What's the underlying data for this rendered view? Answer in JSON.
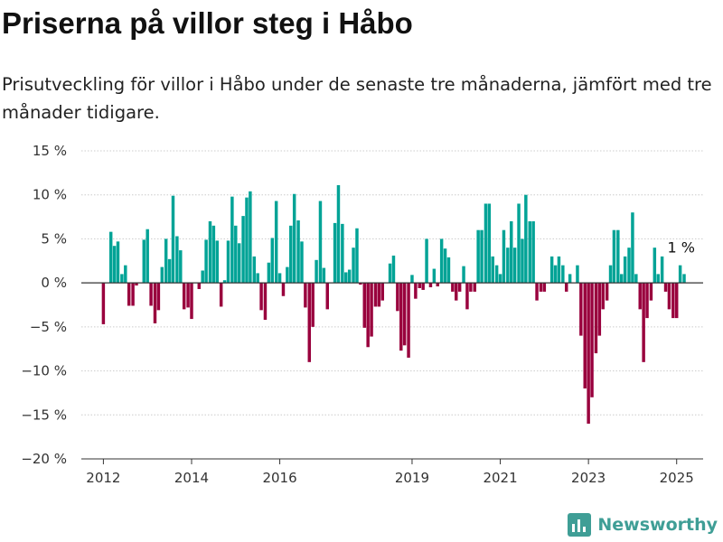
{
  "header": {
    "title": "Priserna på villor steg i Håbo",
    "subtitle": "Prisutveckling för villor i Håbo under de senaste tre månaderna, jämfört med tre månader tidigare."
  },
  "logo": {
    "text": "Newsworthy",
    "icon": "bar-chart-icon"
  },
  "colors": {
    "positive": "#00a396",
    "negative": "#99003d",
    "grid": "#cccccc",
    "zero_line": "#333333",
    "brand": "#3f9e96"
  },
  "chart_data": {
    "type": "bar",
    "title": "Priserna på villor steg i Håbo",
    "subtitle": "Prisutveckling för villor i Håbo under de senaste tre månaderna, jämfört med tre månader tidigare.",
    "xlabel": "",
    "ylabel": "",
    "ylim": [
      -20,
      15
    ],
    "xlim": [
      2011.5,
      2025.6
    ],
    "y_ticks": [
      15,
      10,
      5,
      0,
      -5,
      -10,
      -15,
      -20
    ],
    "y_tick_labels": [
      "15 %",
      "10 %",
      "5 %",
      "0 %",
      "−5 %",
      "−10 %",
      "−15 %",
      "−20 %"
    ],
    "x_ticks": [
      2012,
      2014,
      2016,
      2019,
      2021,
      2023,
      2025
    ],
    "x_tick_labels": [
      "2012",
      "2014",
      "2016",
      "2019",
      "2021",
      "2023",
      "2025"
    ],
    "grid": "horizontal",
    "legend": "none",
    "annotation": {
      "text": "1 %",
      "x": 2025.0,
      "y": 1
    },
    "series": [
      {
        "values": [
          [
            2012.0,
            -4.7
          ],
          [
            2012.17,
            5.8
          ],
          [
            2012.25,
            4.2
          ],
          [
            2012.33,
            4.7
          ],
          [
            2012.42,
            1.0
          ],
          [
            2012.5,
            2.0
          ],
          [
            2012.58,
            -2.6
          ],
          [
            2012.67,
            -2.6
          ],
          [
            2012.75,
            -0.3
          ],
          [
            2012.92,
            4.9
          ],
          [
            2013.0,
            6.1
          ],
          [
            2013.08,
            -2.6
          ],
          [
            2013.17,
            -4.6
          ],
          [
            2013.25,
            -3.1
          ],
          [
            2013.33,
            1.8
          ],
          [
            2013.42,
            5.0
          ],
          [
            2013.5,
            2.7
          ],
          [
            2013.58,
            9.9
          ],
          [
            2013.67,
            5.3
          ],
          [
            2013.75,
            3.7
          ],
          [
            2013.83,
            -3.0
          ],
          [
            2013.92,
            -2.8
          ],
          [
            2014.0,
            -4.1
          ],
          [
            2014.17,
            -0.7
          ],
          [
            2014.25,
            1.4
          ],
          [
            2014.33,
            4.9
          ],
          [
            2014.42,
            7.0
          ],
          [
            2014.5,
            6.5
          ],
          [
            2014.58,
            4.8
          ],
          [
            2014.67,
            -2.7
          ],
          [
            2014.75,
            0.3
          ],
          [
            2014.83,
            4.8
          ],
          [
            2014.92,
            9.8
          ],
          [
            2015.0,
            6.5
          ],
          [
            2015.08,
            4.5
          ],
          [
            2015.17,
            7.6
          ],
          [
            2015.25,
            9.7
          ],
          [
            2015.33,
            10.4
          ],
          [
            2015.42,
            3.0
          ],
          [
            2015.5,
            1.1
          ],
          [
            2015.58,
            -3.1
          ],
          [
            2015.67,
            -4.2
          ],
          [
            2015.75,
            2.3
          ],
          [
            2015.83,
            5.1
          ],
          [
            2015.92,
            9.3
          ],
          [
            2016.0,
            1.1
          ],
          [
            2016.08,
            -1.5
          ],
          [
            2016.17,
            1.8
          ],
          [
            2016.25,
            6.5
          ],
          [
            2016.33,
            10.1
          ],
          [
            2016.42,
            7.1
          ],
          [
            2016.5,
            4.7
          ],
          [
            2016.58,
            -2.8
          ],
          [
            2016.67,
            -9.0
          ],
          [
            2016.75,
            -5.0
          ],
          [
            2016.83,
            2.6
          ],
          [
            2016.92,
            9.3
          ],
          [
            2017.0,
            1.7
          ],
          [
            2017.08,
            -3.0
          ],
          [
            2017.25,
            6.8
          ],
          [
            2017.33,
            11.1
          ],
          [
            2017.42,
            6.7
          ],
          [
            2017.5,
            1.2
          ],
          [
            2017.58,
            1.5
          ],
          [
            2017.67,
            4.0
          ],
          [
            2017.75,
            6.2
          ],
          [
            2017.83,
            -0.2
          ],
          [
            2017.92,
            -5.1
          ],
          [
            2018.0,
            -7.3
          ],
          [
            2018.08,
            -6.1
          ],
          [
            2018.17,
            -2.7
          ],
          [
            2018.25,
            -2.7
          ],
          [
            2018.33,
            -2.0
          ],
          [
            2018.5,
            2.2
          ],
          [
            2018.58,
            3.1
          ],
          [
            2018.67,
            -3.2
          ],
          [
            2018.75,
            -7.7
          ],
          [
            2018.83,
            -7.1
          ],
          [
            2018.92,
            -8.5
          ],
          [
            2019.0,
            0.9
          ],
          [
            2019.08,
            -1.8
          ],
          [
            2019.17,
            -0.6
          ],
          [
            2019.25,
            -0.8
          ],
          [
            2019.33,
            5.0
          ],
          [
            2019.42,
            -0.5
          ],
          [
            2019.5,
            1.6
          ],
          [
            2019.58,
            -0.4
          ],
          [
            2019.67,
            5.0
          ],
          [
            2019.75,
            3.9
          ],
          [
            2019.83,
            2.9
          ],
          [
            2019.92,
            -1.0
          ],
          [
            2020.0,
            -2.0
          ],
          [
            2020.08,
            -1.0
          ],
          [
            2020.17,
            1.9
          ],
          [
            2020.25,
            -3.0
          ],
          [
            2020.33,
            -1.0
          ],
          [
            2020.42,
            -1.0
          ],
          [
            2020.5,
            6.0
          ],
          [
            2020.58,
            6.0
          ],
          [
            2020.67,
            9.0
          ],
          [
            2020.75,
            9.0
          ],
          [
            2020.83,
            3.0
          ],
          [
            2020.92,
            2.0
          ],
          [
            2021.0,
            1.0
          ],
          [
            2021.08,
            6.0
          ],
          [
            2021.17,
            4.0
          ],
          [
            2021.25,
            7.0
          ],
          [
            2021.33,
            4.0
          ],
          [
            2021.42,
            9.0
          ],
          [
            2021.5,
            5.0
          ],
          [
            2021.58,
            10.0
          ],
          [
            2021.67,
            7.0
          ],
          [
            2021.75,
            7.0
          ],
          [
            2021.83,
            -2.0
          ],
          [
            2021.92,
            -1.0
          ],
          [
            2022.0,
            -1.0
          ],
          [
            2022.17,
            3.0
          ],
          [
            2022.25,
            2.0
          ],
          [
            2022.33,
            3.0
          ],
          [
            2022.42,
            2.0
          ],
          [
            2022.5,
            -1.0
          ],
          [
            2022.58,
            1.0
          ],
          [
            2022.75,
            2.0
          ],
          [
            2022.83,
            -6.0
          ],
          [
            2022.92,
            -12.0
          ],
          [
            2023.0,
            -16.0
          ],
          [
            2023.08,
            -13.0
          ],
          [
            2023.17,
            -8.0
          ],
          [
            2023.25,
            -6.0
          ],
          [
            2023.33,
            -3.0
          ],
          [
            2023.42,
            -2.0
          ],
          [
            2023.5,
            2.0
          ],
          [
            2023.58,
            6.0
          ],
          [
            2023.67,
            6.0
          ],
          [
            2023.75,
            1.0
          ],
          [
            2023.83,
            3.0
          ],
          [
            2023.92,
            4.0
          ],
          [
            2024.0,
            8.0
          ],
          [
            2024.08,
            1.0
          ],
          [
            2024.17,
            -3.0
          ],
          [
            2024.25,
            -9.0
          ],
          [
            2024.33,
            -4.0
          ],
          [
            2024.42,
            -2.0
          ],
          [
            2024.5,
            4.0
          ],
          [
            2024.58,
            1.0
          ],
          [
            2024.67,
            3.0
          ],
          [
            2024.75,
            -1.0
          ],
          [
            2024.83,
            -3.0
          ],
          [
            2024.92,
            -4.0
          ],
          [
            2025.0,
            -4.0
          ],
          [
            2025.08,
            2.0
          ],
          [
            2025.17,
            1.0
          ]
        ]
      }
    ]
  }
}
